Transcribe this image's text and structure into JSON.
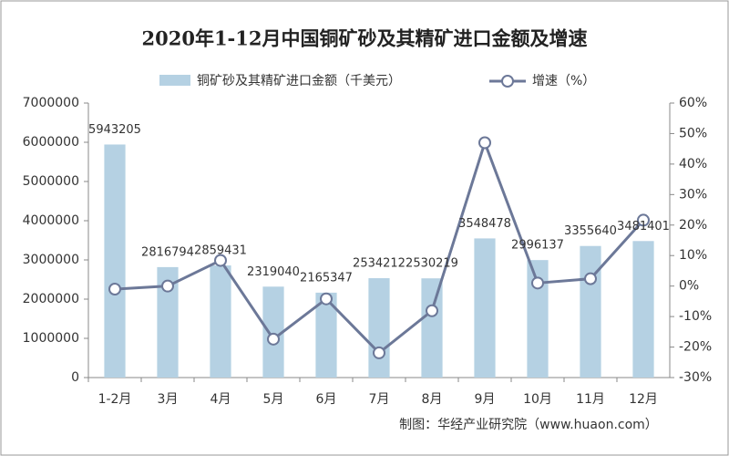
{
  "chart_data": {
    "type": "bar-line",
    "title": "2020年1-12月中国铜矿砂及其精矿进口金额及增速",
    "categories": [
      "1-2月",
      "3月",
      "4月",
      "5月",
      "6月",
      "7月",
      "8月",
      "9月",
      "10月",
      "11月",
      "12月"
    ],
    "series": [
      {
        "name": "铜矿砂及其精矿进口金额（千美元）",
        "type": "bar",
        "color": "#b5d1e3",
        "values": [
          5943205,
          2816794,
          2859431,
          2319040,
          2165347,
          2534212,
          2530219,
          3548478,
          2996137,
          3355640,
          3481401
        ]
      },
      {
        "name": "增速（%）",
        "type": "line",
        "axis": "y2",
        "color": "#6c7898",
        "values": [
          -1,
          0,
          8.4,
          -17.4,
          -4.2,
          -21.9,
          -8.1,
          47,
          1,
          2.4,
          21.6
        ]
      }
    ],
    "ylim": [
      0,
      7000000
    ],
    "yticks": [
      0,
      1000000,
      2000000,
      3000000,
      4000000,
      5000000,
      6000000,
      7000000
    ],
    "y2lim": [
      -30,
      60
    ],
    "y2ticks": [
      {
        "value": -30,
        "label": "-30%"
      },
      {
        "value": -20,
        "label": "-20%"
      },
      {
        "value": -10,
        "label": "-10%"
      },
      {
        "value": 0,
        "label": "0%"
      },
      {
        "value": 10,
        "label": "10%"
      },
      {
        "value": 20,
        "label": "20%"
      },
      {
        "value": 30,
        "label": "30%"
      },
      {
        "value": 40,
        "label": "40%"
      },
      {
        "value": 50,
        "label": "50%"
      },
      {
        "value": 60,
        "label": "60%"
      }
    ],
    "source": "制图：华经产业研究院（www.huaon.com）"
  }
}
